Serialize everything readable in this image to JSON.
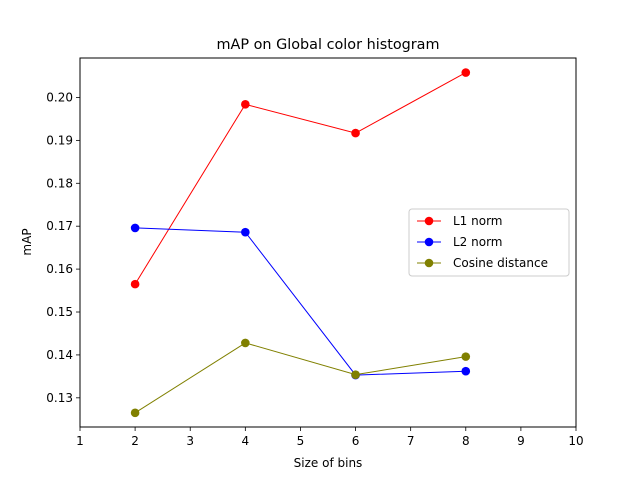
{
  "chart_data": {
    "type": "line",
    "title": "mAP on Global color histogram",
    "xlabel": "Size of bins",
    "ylabel": "mAP",
    "x": [
      2,
      4,
      6,
      8
    ],
    "xlim": [
      1,
      10
    ],
    "ylim": [
      0.1232,
      0.2092
    ],
    "xticks": [
      1,
      2,
      3,
      4,
      5,
      6,
      7,
      8,
      9,
      10
    ],
    "xtick_labels": [
      "1",
      "2",
      "3",
      "4",
      "5",
      "6",
      "7",
      "8",
      "9",
      "10"
    ],
    "yticks": [
      0.13,
      0.14,
      0.15,
      0.16,
      0.17,
      0.18,
      0.19,
      0.2
    ],
    "ytick_labels": [
      "0.13",
      "0.14",
      "0.15",
      "0.16",
      "0.17",
      "0.18",
      "0.19",
      "0.20"
    ],
    "grid": false,
    "legend_position": "right",
    "series": [
      {
        "name": "L1 norm",
        "color": "#ff0000",
        "values": [
          0.1565,
          0.1984,
          0.1917,
          0.2058
        ]
      },
      {
        "name": "L2 norm",
        "color": "#0000ff",
        "values": [
          0.1696,
          0.1686,
          0.1353,
          0.1362
        ]
      },
      {
        "name": "Cosine distance",
        "color": "#808000",
        "values": [
          0.1265,
          0.1428,
          0.1354,
          0.1396
        ]
      }
    ]
  }
}
